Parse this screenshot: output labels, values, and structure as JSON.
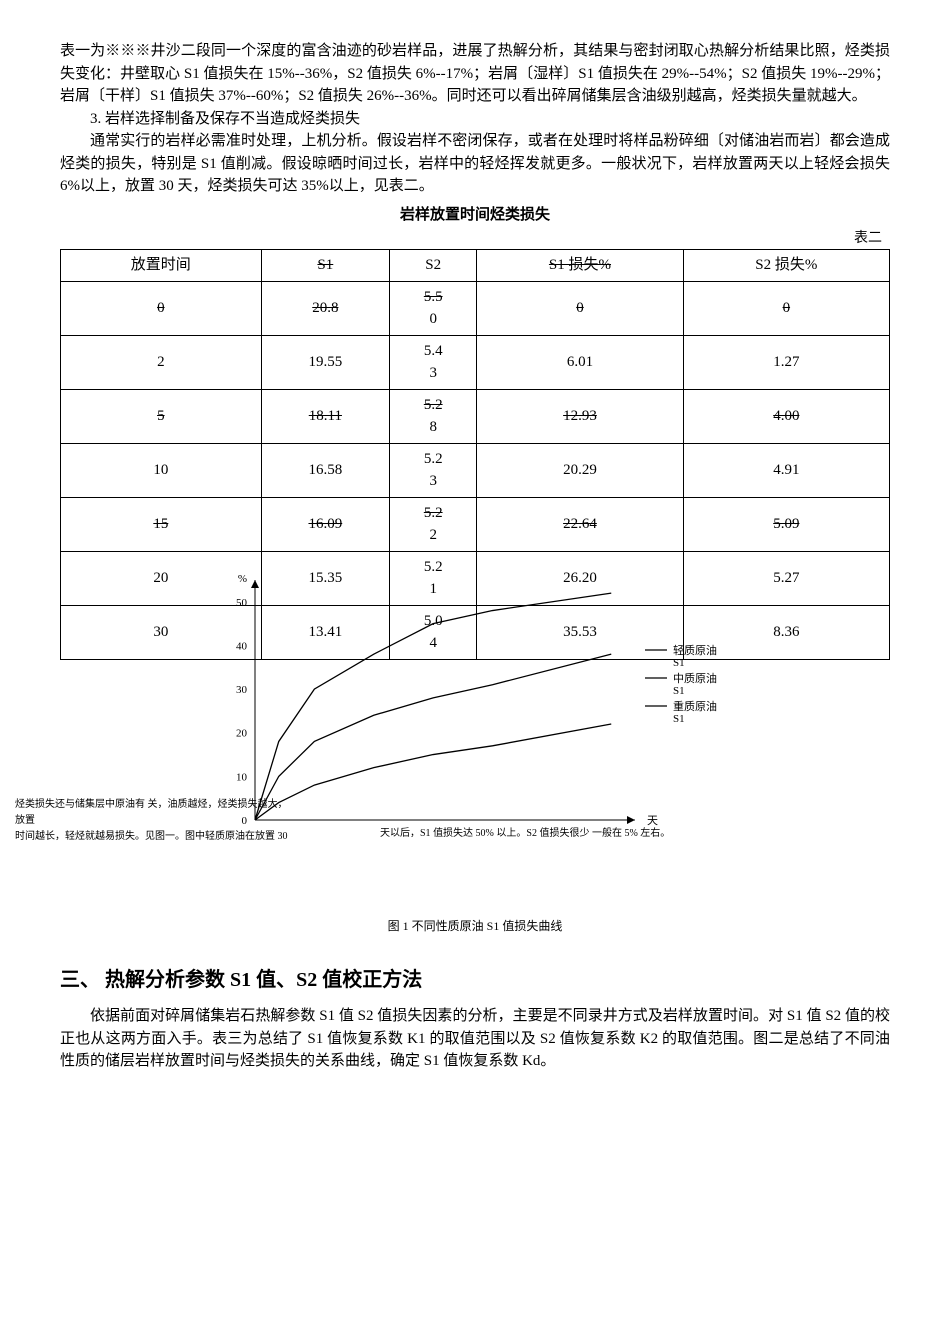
{
  "paragraphs": {
    "p1": "表一为※※※井沙二段同一个深度的富含油迹的砂岩样品，进展了热解分析，其结果与密封闭取心热解分析结果比照，烃类损失变化：井壁取心 S1 值损失在 15%--36%，S2 值损失 6%--17%；岩屑〔湿样〕S1 值损失在 29%--54%；S2 值损失 19%--29%；岩屑〔干样〕S1 值损失 37%--60%；S2 值损失 26%--36%。同时还可以看出碎屑储集层含油级别越高，烃类损失量就越大。",
    "p2_title": "3. 岩样选择制备及保存不当造成烃类损失",
    "p2": "通常实行的岩样必需准时处理，上机分析。假设岩样不密闭保存，或者在处理时将样品粉碎细〔对储油岩而岩〕都会造成烃类的损失，特别是 S1 值削减。假设晾晒时间过长，岩样中的轻烃挥发就更多。一般状况下，岩样放置两天以上轻烃会损失 6%以上，放置 30 天，烃类损失可达 35%以上，见表二。"
  },
  "table": {
    "title": "岩样放置时间烃类损失",
    "label": "表二",
    "headers": [
      "放置时间",
      "S1",
      "S2",
      "S1 损失%",
      "S2 损失%"
    ],
    "rows": [
      {
        "cells": [
          "0",
          "20.8",
          "5.50",
          "0",
          "0"
        ],
        "strike": true
      },
      {
        "cells": [
          "2",
          "19.55",
          "5.43",
          "6.01",
          "1.27"
        ],
        "strike": false
      },
      {
        "cells": [
          "5",
          "18.11",
          "5.28",
          "12.93",
          "4.00"
        ],
        "strike": true
      },
      {
        "cells": [
          "10",
          "16.58",
          "5.23",
          "20.29",
          "4.91"
        ],
        "strike": false
      },
      {
        "cells": [
          "15",
          "16.09",
          "5.22",
          "22.64",
          "5.09"
        ],
        "strike": true
      },
      {
        "cells": [
          "20",
          "15.35",
          "5.21",
          "26.20",
          "5.27"
        ],
        "strike": false
      },
      {
        "cells": [
          "30",
          "13.41",
          "5.04",
          "35.53",
          "8.36"
        ],
        "strike": false
      }
    ]
  },
  "chart": {
    "caption": "图 1 不同性质原油 S1 值损失曲线",
    "y_label": "%",
    "y_ticks": [
      0,
      10,
      20,
      30,
      40,
      50
    ],
    "y_max": 55,
    "x_label": "天",
    "x_max": 32,
    "legend": [
      {
        "label": "轻质原油",
        "sub": "S1"
      },
      {
        "label": "中质原油",
        "sub": "S1"
      },
      {
        "label": "重质原油",
        "sub": "S1"
      }
    ],
    "series": [
      {
        "name": "light",
        "color": "#000",
        "points": [
          [
            0,
            0
          ],
          [
            2,
            18
          ],
          [
            5,
            30
          ],
          [
            10,
            38
          ],
          [
            15,
            45
          ],
          [
            20,
            48
          ],
          [
            30,
            52
          ]
        ]
      },
      {
        "name": "medium",
        "color": "#000",
        "points": [
          [
            0,
            0
          ],
          [
            2,
            10
          ],
          [
            5,
            18
          ],
          [
            10,
            24
          ],
          [
            15,
            28
          ],
          [
            20,
            31
          ],
          [
            30,
            38
          ]
        ]
      },
      {
        "name": "heavy",
        "color": "#000",
        "points": [
          [
            0,
            0
          ],
          [
            2,
            4
          ],
          [
            5,
            8
          ],
          [
            10,
            12
          ],
          [
            15,
            15
          ],
          [
            20,
            17
          ],
          [
            30,
            22
          ]
        ]
      }
    ],
    "note_left_1": "烃类损失还与储集层中原油有 关，油质越烃，烃类损失越大，放置",
    "note_left_2": "时间越长，轻烃就越易损失。见图一。图中轻质原油在放置 30",
    "note_mid": "天以后，S1",
    "note_right_1": "值损失达 50% 以上。S2",
    "note_right_2": "值损失很少",
    "note_right_3": "一般在 5% 左右。"
  },
  "section3": {
    "heading": "三、 热解分析参数 S1 值、S2 值校正方法",
    "body": "依据前面对碎屑储集岩石热解参数 S1 值 S2 值损失因素的分析，主要是不同录井方式及岩样放置时间。对 S1 值 S2 值的校正也从这两方面入手。表三为总结了 S1 值恢复系数 K1 的取值范围以及 S2 值恢复系数 K2 的取值范围。图二是总结了不同油性质的储层岩样放置时间与烃类损失的关系曲线，确定 S1 值恢复系数 Kd。"
  },
  "colors": {
    "text": "#000000",
    "bg": "#ffffff",
    "border": "#000000"
  }
}
